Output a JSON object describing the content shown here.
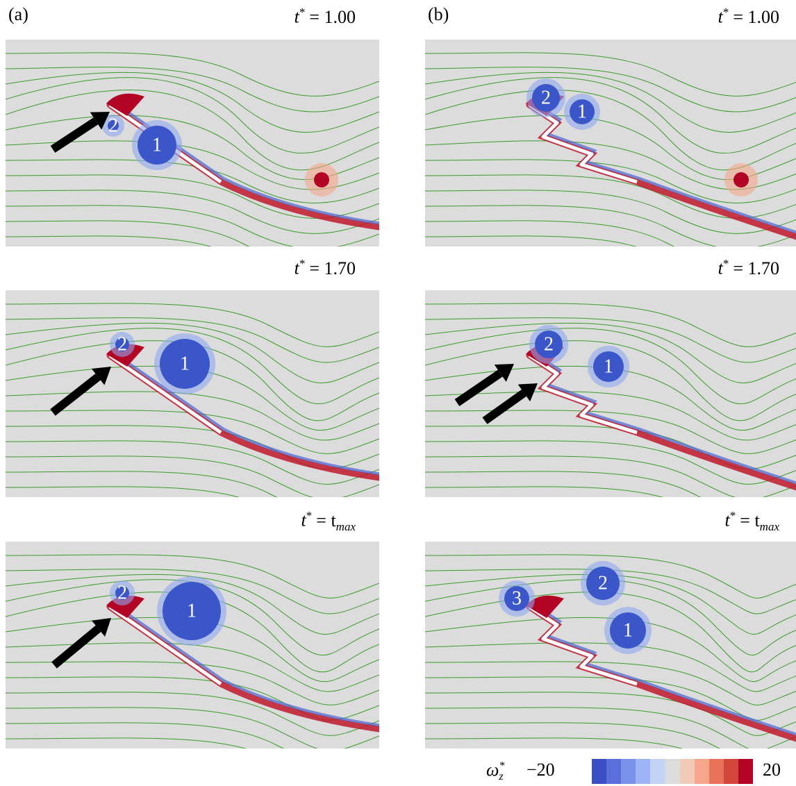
{
  "panels": [
    {
      "label": "(a)",
      "frames": [
        {
          "time": {
            "var": "t",
            "sup": "*",
            "eq": "= 1.00"
          },
          "vortex_labels": [
            "2",
            "1"
          ]
        },
        {
          "time": {
            "var": "t",
            "sup": "*",
            "eq": "= 1.70"
          },
          "vortex_labels": [
            "2",
            "1"
          ]
        },
        {
          "time": {
            "var": "t",
            "sup": "*",
            "eq": "= t",
            "sub": "max"
          },
          "vortex_labels": [
            "2",
            "1"
          ]
        }
      ]
    },
    {
      "label": "(b)",
      "frames": [
        {
          "time": {
            "var": "t",
            "sup": "*",
            "eq": "= 1.00"
          },
          "vortex_labels": [
            "2",
            "1"
          ]
        },
        {
          "time": {
            "var": "t",
            "sup": "*",
            "eq": "= 1.70"
          },
          "vortex_labels": [
            "2",
            "1"
          ]
        },
        {
          "time": {
            "var": "t",
            "sup": "*",
            "eq": "= t",
            "sub": "max"
          },
          "vortex_labels": [
            "3",
            "2",
            "1"
          ]
        }
      ]
    }
  ],
  "colorbar": {
    "symbol": "ω",
    "symbol_sup": "*",
    "symbol_sub": "z",
    "min_label": "−20",
    "max_label": "20",
    "colors": [
      "#3a4fc4",
      "#5a6fdc",
      "#7b92ec",
      "#9db4f6",
      "#c2d3f5",
      "#dcdcdc",
      "#f2cbb8",
      "#f4a78a",
      "#e8735a",
      "#d1473c",
      "#b40426"
    ]
  }
}
